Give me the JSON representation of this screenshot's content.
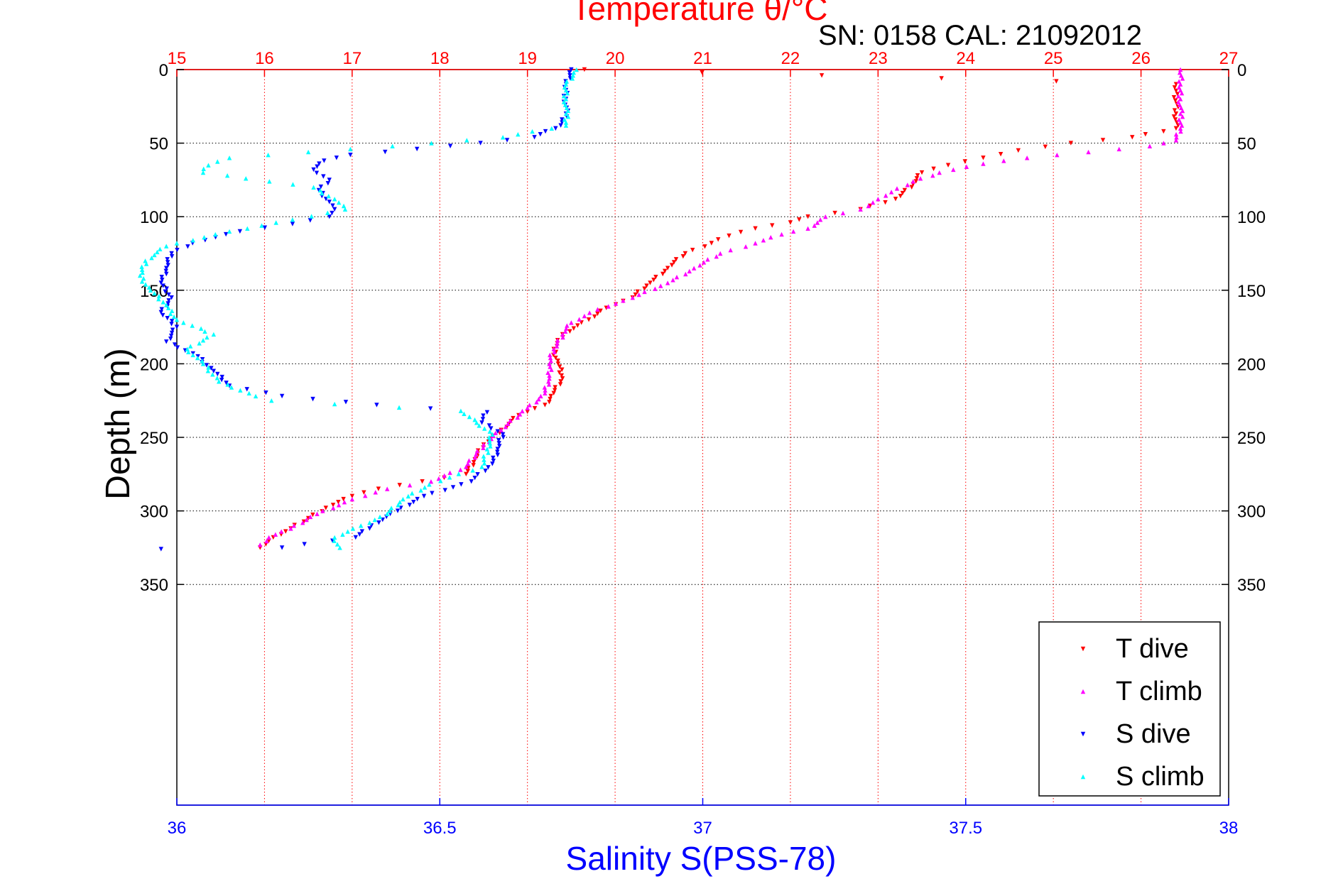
{
  "chart_data": {
    "type": "scatter",
    "title_top": "Temperature θ/°C",
    "subtitle": "SN: 0158  CAL: 21092012",
    "xlabel_bottom": "Salinity S(PSS-78)",
    "ylabel": "Depth (m)",
    "x_top": {
      "label": "Temperature θ/°C",
      "range": [
        15,
        27
      ],
      "ticks": [
        "15",
        "16",
        "17",
        "18",
        "19",
        "20",
        "21",
        "22",
        "23",
        "24",
        "25",
        "26",
        "27"
      ],
      "color": "#ff0000"
    },
    "x_bottom": {
      "label": "Salinity S(PSS-78)",
      "range": [
        36,
        38
      ],
      "ticks": [
        "36",
        "36.5",
        "37",
        "37.5",
        "38"
      ],
      "color": "#0000ff"
    },
    "y": {
      "label": "Depth (m)",
      "range": [
        0,
        500
      ],
      "reversed": true,
      "ticks": [
        "0",
        "50",
        "100",
        "150",
        "200",
        "250",
        "300",
        "350"
      ]
    },
    "grid": true,
    "legend_position": "bottom-right",
    "series": [
      {
        "name": "T dive",
        "axis": "temperature",
        "color": "#ff0000",
        "marker": "triangle-down",
        "points": [
          [
            19.65,
            0
          ],
          [
            26.4,
            10
          ],
          [
            26.4,
            30
          ],
          [
            26.4,
            40
          ],
          [
            25.9,
            46
          ],
          [
            25.2,
            50
          ],
          [
            24.6,
            55
          ],
          [
            24.2,
            60
          ],
          [
            23.8,
            65
          ],
          [
            23.5,
            70
          ],
          [
            23.4,
            78
          ],
          [
            23.2,
            88
          ],
          [
            22.8,
            95
          ],
          [
            22.2,
            100
          ],
          [
            22.0,
            104
          ],
          [
            21.6,
            108
          ],
          [
            21.3,
            113
          ],
          [
            21.1,
            118
          ],
          [
            20.8,
            125
          ],
          [
            20.6,
            135
          ],
          [
            20.4,
            145
          ],
          [
            20.2,
            155
          ],
          [
            19.9,
            162
          ],
          [
            19.7,
            170
          ],
          [
            19.4,
            180
          ],
          [
            19.3,
            190
          ],
          [
            19.35,
            200
          ],
          [
            19.4,
            210
          ],
          [
            19.3,
            220
          ],
          [
            19.2,
            228
          ],
          [
            18.9,
            235
          ],
          [
            18.7,
            245
          ],
          [
            18.5,
            255
          ],
          [
            18.4,
            265
          ],
          [
            18.3,
            275
          ],
          [
            17.8,
            280
          ],
          [
            17.3,
            285
          ],
          [
            17.0,
            290
          ],
          [
            16.7,
            298
          ],
          [
            16.5,
            305
          ],
          [
            16.3,
            312
          ],
          [
            16.1,
            318
          ],
          [
            15.95,
            325
          ]
        ]
      },
      {
        "name": "T climb",
        "axis": "temperature",
        "color": "#ff00ff",
        "marker": "triangle-up",
        "points": [
          [
            26.45,
            0
          ],
          [
            26.45,
            10
          ],
          [
            26.45,
            20
          ],
          [
            26.45,
            30
          ],
          [
            26.45,
            40
          ],
          [
            26.4,
            48
          ],
          [
            26.1,
            52
          ],
          [
            25.4,
            56
          ],
          [
            24.7,
            60
          ],
          [
            24.2,
            64
          ],
          [
            23.7,
            70
          ],
          [
            23.4,
            76
          ],
          [
            23.0,
            88
          ],
          [
            22.8,
            95
          ],
          [
            22.4,
            100
          ],
          [
            22.2,
            108
          ],
          [
            21.9,
            112
          ],
          [
            21.6,
            118
          ],
          [
            21.2,
            125
          ],
          [
            20.9,
            135
          ],
          [
            20.6,
            145
          ],
          [
            20.2,
            155
          ],
          [
            19.8,
            163
          ],
          [
            19.5,
            172
          ],
          [
            19.4,
            180
          ],
          [
            19.3,
            190
          ],
          [
            19.25,
            200
          ],
          [
            19.25,
            210
          ],
          [
            19.2,
            220
          ],
          [
            19.0,
            230
          ],
          [
            18.7,
            245
          ],
          [
            18.5,
            255
          ],
          [
            18.3,
            270
          ],
          [
            17.9,
            280
          ],
          [
            17.4,
            285
          ],
          [
            17.0,
            292
          ],
          [
            16.6,
            302
          ],
          [
            16.3,
            312
          ],
          [
            16.05,
            318
          ],
          [
            15.95,
            323
          ]
        ]
      },
      {
        "name": "S dive",
        "axis": "salinity",
        "color": "#0000ff",
        "marker": "triangle-down",
        "points": [
          [
            36.75,
            0
          ],
          [
            36.74,
            10
          ],
          [
            36.74,
            20
          ],
          [
            36.74,
            30
          ],
          [
            36.73,
            38
          ],
          [
            36.68,
            46
          ],
          [
            36.52,
            52
          ],
          [
            36.33,
            58
          ],
          [
            36.28,
            62
          ],
          [
            36.26,
            68
          ],
          [
            36.29,
            75
          ],
          [
            36.27,
            82
          ],
          [
            36.29,
            90
          ],
          [
            36.3,
            95
          ],
          [
            36.29,
            100
          ],
          [
            36.22,
            105
          ],
          [
            36.12,
            110
          ],
          [
            36.03,
            118
          ],
          [
            35.99,
            125
          ],
          [
            35.98,
            135
          ],
          [
            35.97,
            145
          ],
          [
            35.99,
            155
          ],
          [
            35.97,
            165
          ],
          [
            36.0,
            175
          ],
          [
            35.98,
            185
          ],
          [
            36.04,
            195
          ],
          [
            36.07,
            205
          ],
          [
            36.1,
            215
          ],
          [
            36.2,
            222
          ],
          [
            36.38,
            228
          ],
          [
            36.59,
            233
          ],
          [
            36.58,
            240
          ],
          [
            36.62,
            248
          ],
          [
            36.61,
            258
          ],
          [
            36.6,
            268
          ],
          [
            36.56,
            280
          ],
          [
            36.47,
            290
          ],
          [
            36.42,
            300
          ],
          [
            36.37,
            310
          ],
          [
            36.34,
            318
          ],
          [
            36.2,
            325
          ],
          [
            35.97,
            326
          ]
        ]
      },
      {
        "name": "S climb",
        "axis": "salinity",
        "color": "#00ffff",
        "marker": "triangle-up",
        "points": [
          [
            36.76,
            0
          ],
          [
            36.74,
            10
          ],
          [
            36.74,
            20
          ],
          [
            36.74,
            30
          ],
          [
            36.74,
            38
          ],
          [
            36.62,
            46
          ],
          [
            36.41,
            52
          ],
          [
            36.25,
            56
          ],
          [
            36.1,
            60
          ],
          [
            36.06,
            65
          ],
          [
            36.05,
            70
          ],
          [
            36.26,
            80
          ],
          [
            36.3,
            88
          ],
          [
            36.32,
            95
          ],
          [
            36.22,
            102
          ],
          [
            36.1,
            110
          ],
          [
            35.98,
            120
          ],
          [
            35.94,
            130
          ],
          [
            35.93,
            140
          ],
          [
            35.95,
            150
          ],
          [
            35.98,
            160
          ],
          [
            36.0,
            170
          ],
          [
            36.07,
            180
          ],
          [
            36.02,
            190
          ],
          [
            36.05,
            200
          ],
          [
            36.08,
            212
          ],
          [
            36.15,
            222
          ],
          [
            36.18,
            225
          ],
          [
            36.54,
            232
          ],
          [
            36.57,
            240
          ],
          [
            36.6,
            248
          ],
          [
            36.59,
            258
          ],
          [
            36.58,
            270
          ],
          [
            36.48,
            282
          ],
          [
            36.43,
            292
          ],
          [
            36.4,
            302
          ],
          [
            36.35,
            310
          ],
          [
            36.3,
            318
          ],
          [
            36.31,
            325
          ]
        ]
      }
    ]
  }
}
